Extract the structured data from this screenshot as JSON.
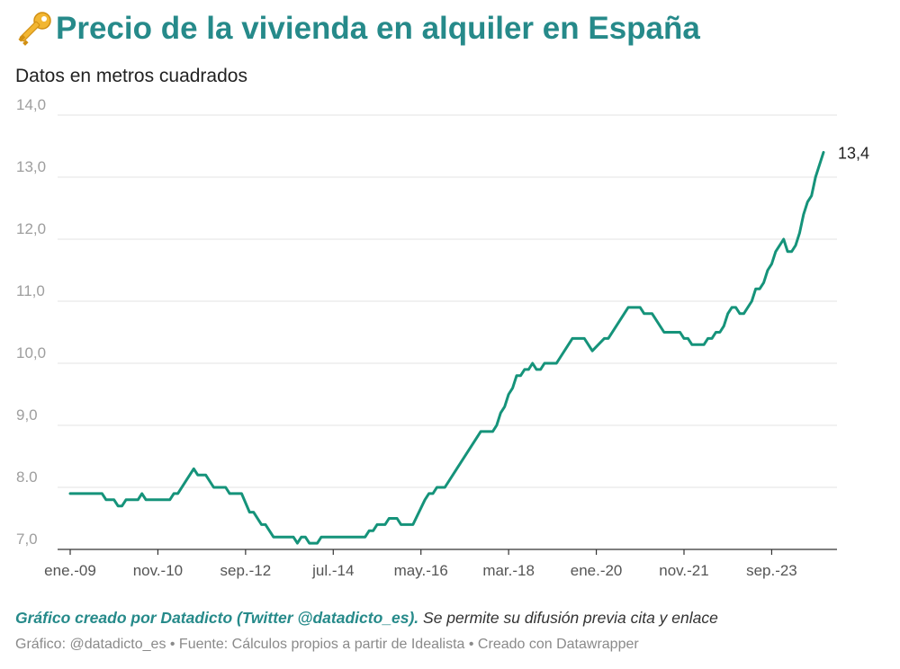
{
  "header": {
    "icon": "key-icon",
    "title": "Precio de la vivienda en alquiler en España",
    "subtitle": "Datos en metros cuadrados"
  },
  "footer": {
    "credit_strong": "Gráfico creado por Datadicto (Twitter @datadicto_es).",
    "credit_rest": " Se permite su difusión previa cita y enlace",
    "source": "Gráfico: @datadicto_es • Fuente: Cálculos propios a partir de Idealista • Creado con Datawrapper"
  },
  "colors": {
    "title": "#268a8a",
    "line": "#15937a",
    "grid": "#e3e3e3"
  },
  "chart_data": {
    "type": "line",
    "title": "Precio de la vivienda en alquiler en España",
    "subtitle": "Datos en metros cuadrados",
    "xlabel": "",
    "ylabel": "",
    "ylim": [
      7.0,
      14.0
    ],
    "y_ticks": [
      "7,0",
      "8.0",
      "9,0",
      "10,0",
      "11,0",
      "12,0",
      "13,0",
      "14,0"
    ],
    "x_ticks": [
      {
        "label": "ene.-09",
        "date": "2009-01"
      },
      {
        "label": "nov.-10",
        "date": "2010-11"
      },
      {
        "label": "sep.-12",
        "date": "2012-09"
      },
      {
        "label": "jul.-14",
        "date": "2014-07"
      },
      {
        "label": "may.-16",
        "date": "2016-05"
      },
      {
        "label": "mar.-18",
        "date": "2018-03"
      },
      {
        "label": "ene.-20",
        "date": "2020-01"
      },
      {
        "label": "nov.-21",
        "date": "2021-11"
      },
      {
        "label": "sep.-23",
        "date": "2023-09"
      }
    ],
    "grid": true,
    "legend": "none",
    "end_label": "13,4",
    "series": [
      {
        "values": [
          [
            "2009-01",
            7.9
          ],
          [
            "2009-07",
            7.9
          ],
          [
            "2009-09",
            7.9
          ],
          [
            "2009-10",
            7.8
          ],
          [
            "2009-12",
            7.8
          ],
          [
            "2010-01",
            7.7
          ],
          [
            "2010-02",
            7.7
          ],
          [
            "2010-03",
            7.8
          ],
          [
            "2010-06",
            7.8
          ],
          [
            "2010-07",
            7.9
          ],
          [
            "2010-08",
            7.8
          ],
          [
            "2011-02",
            7.8
          ],
          [
            "2011-03",
            7.9
          ],
          [
            "2011-04",
            7.9
          ],
          [
            "2011-06",
            8.1
          ],
          [
            "2011-08",
            8.3
          ],
          [
            "2011-09",
            8.2
          ],
          [
            "2011-11",
            8.2
          ],
          [
            "2012-01",
            8.0
          ],
          [
            "2012-04",
            8.0
          ],
          [
            "2012-05",
            7.9
          ],
          [
            "2012-08",
            7.9
          ],
          [
            "2012-10",
            7.6
          ],
          [
            "2012-11",
            7.6
          ],
          [
            "2013-01",
            7.4
          ],
          [
            "2013-02",
            7.4
          ],
          [
            "2013-04",
            7.2
          ],
          [
            "2013-09",
            7.2
          ],
          [
            "2013-10",
            7.1
          ],
          [
            "2013-11",
            7.2
          ],
          [
            "2013-12",
            7.2
          ],
          [
            "2014-01",
            7.1
          ],
          [
            "2014-03",
            7.1
          ],
          [
            "2014-04",
            7.2
          ],
          [
            "2015-03",
            7.2
          ],
          [
            "2015-04",
            7.3
          ],
          [
            "2015-05",
            7.3
          ],
          [
            "2015-06",
            7.4
          ],
          [
            "2015-08",
            7.4
          ],
          [
            "2015-09",
            7.5
          ],
          [
            "2015-11",
            7.5
          ],
          [
            "2015-12",
            7.4
          ],
          [
            "2016-03",
            7.4
          ],
          [
            "2016-06",
            7.8
          ],
          [
            "2016-07",
            7.9
          ],
          [
            "2016-08",
            7.9
          ],
          [
            "2016-09",
            8.0
          ],
          [
            "2016-11",
            8.0
          ],
          [
            "2017-08",
            8.9
          ],
          [
            "2017-11",
            8.9
          ],
          [
            "2017-12",
            9.0
          ],
          [
            "2018-01",
            9.2
          ],
          [
            "2018-02",
            9.3
          ],
          [
            "2018-03",
            9.5
          ],
          [
            "2018-04",
            9.6
          ],
          [
            "2018-05",
            9.8
          ],
          [
            "2018-06",
            9.8
          ],
          [
            "2018-07",
            9.9
          ],
          [
            "2018-08",
            9.9
          ],
          [
            "2018-09",
            10.0
          ],
          [
            "2018-10",
            9.9
          ],
          [
            "2018-11",
            9.9
          ],
          [
            "2018-12",
            10.0
          ],
          [
            "2019-03",
            10.0
          ],
          [
            "2019-07",
            10.4
          ],
          [
            "2019-10",
            10.4
          ],
          [
            "2019-12",
            10.2
          ],
          [
            "2020-03",
            10.4
          ],
          [
            "2020-04",
            10.4
          ],
          [
            "2020-09",
            10.9
          ],
          [
            "2020-12",
            10.9
          ],
          [
            "2021-01",
            10.8
          ],
          [
            "2021-03",
            10.8
          ],
          [
            "2021-06",
            10.5
          ],
          [
            "2021-10",
            10.5
          ],
          [
            "2021-11",
            10.4
          ],
          [
            "2021-12",
            10.4
          ],
          [
            "2022-01",
            10.3
          ],
          [
            "2022-04",
            10.3
          ],
          [
            "2022-05",
            10.4
          ],
          [
            "2022-06",
            10.4
          ],
          [
            "2022-07",
            10.5
          ],
          [
            "2022-08",
            10.5
          ],
          [
            "2022-09",
            10.6
          ],
          [
            "2022-10",
            10.8
          ],
          [
            "2022-11",
            10.9
          ],
          [
            "2022-12",
            10.9
          ],
          [
            "2023-01",
            10.8
          ],
          [
            "2023-02",
            10.8
          ],
          [
            "2023-04",
            11.0
          ],
          [
            "2023-05",
            11.2
          ],
          [
            "2023-06",
            11.2
          ],
          [
            "2023-07",
            11.3
          ],
          [
            "2023-08",
            11.5
          ],
          [
            "2023-09",
            11.6
          ],
          [
            "2023-10",
            11.8
          ],
          [
            "2023-12",
            12.0
          ],
          [
            "2024-01",
            11.8
          ],
          [
            "2024-02",
            11.8
          ],
          [
            "2024-03",
            11.9
          ],
          [
            "2024-04",
            12.1
          ],
          [
            "2024-05",
            12.4
          ],
          [
            "2024-06",
            12.6
          ],
          [
            "2024-07",
            12.7
          ],
          [
            "2024-08",
            13.0
          ],
          [
            "2024-10",
            13.4
          ]
        ]
      }
    ]
  }
}
